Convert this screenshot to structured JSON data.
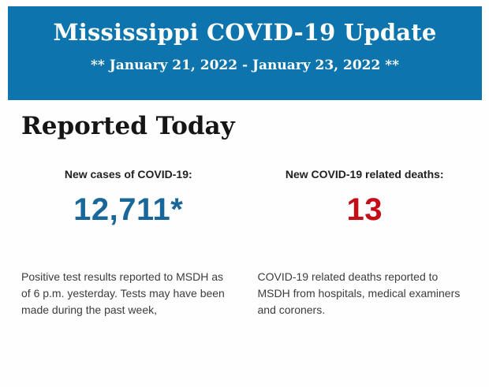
{
  "page": {
    "background_color": "#fefefe"
  },
  "header": {
    "title": "Mississippi COVID-19 Update",
    "date_range": "** January 21, 2022 - January 23, 2022 **",
    "background_color": "#0d74ad",
    "text_color": "#fdfdfa"
  },
  "main": {
    "section_title": "Reported Today",
    "stats": [
      {
        "label": "New cases of COVID-19:",
        "value": "12,711*",
        "value_color": "#1a689a",
        "description": "Positive test results reported to MSDH as of 6 p.m. yesterday. Tests may have been made during the past week,"
      },
      {
        "label": "New COVID-19 related deaths:",
        "value": "13",
        "value_color": "#c40d16",
        "description": "COVID-19 related deaths reported to MSDH from hospitals, medical examiners and coroners."
      }
    ]
  }
}
